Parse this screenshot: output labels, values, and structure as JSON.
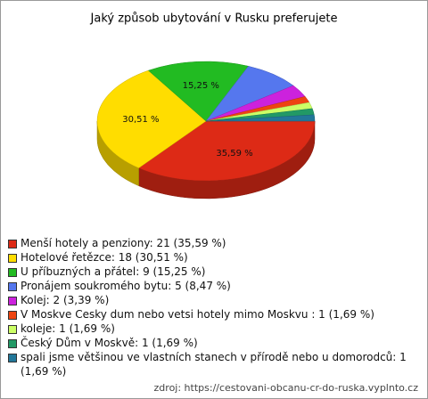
{
  "chart_data": {
    "type": "pie",
    "title": "Jaký způsob ubytování v Rusku preferujete",
    "categories": [
      "Menší hotely a penziony: 21 (35,59 %)",
      "Hotelové řetězce: 18 (30,51 %)",
      "U příbuzných a přátel: 9 (15,25 %)",
      "Pronájem soukromého bytu: 5 (8,47 %)",
      "Kolej: 2 (3,39 %)",
      "V Moskve Cesky dum nebo vetsi hotely mimo Moskvu : 1 (1,69 %)",
      "koleje: 1 (1,69 %)",
      "Český Dům v Moskvě: 1 (1,69 %)",
      "spali jsme většinou ve vlastních stanech v přírodě nebo u domorodců: 1 (1,69 %)"
    ],
    "values": [
      35.59,
      30.51,
      15.25,
      8.47,
      3.39,
      1.69,
      1.69,
      1.69,
      1.69
    ],
    "value_labels": [
      "35,59 %",
      "30,51 %",
      "15,25 %",
      null,
      null,
      null,
      null,
      null,
      null
    ],
    "colors": [
      "#dd2a16",
      "#ffdd00",
      "#22bb22",
      "#5577ee",
      "#cc22dd",
      "#ee4411",
      "#ccff66",
      "#229966",
      "#227799"
    ],
    "source": "zdroj: https://cestovani-obcanu-cr-do-ruska.vyplnto.cz"
  }
}
